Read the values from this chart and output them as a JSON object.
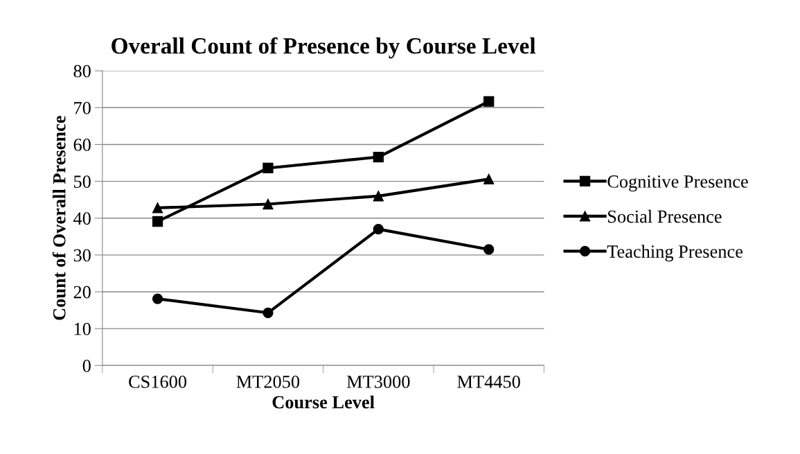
{
  "chart_data": {
    "type": "line",
    "title": "Overall Count of Presence by Course Level",
    "xlabel": "Course Level",
    "ylabel": "Count of Overall Presence",
    "categories": [
      "CS1600",
      "MT2050",
      "MT3000",
      "MT4450"
    ],
    "series": [
      {
        "name": "Cognitive Presence",
        "color": "#000000",
        "marker": "square",
        "values": [
          39.1,
          53.6,
          56.6,
          71.7
        ]
      },
      {
        "name": "Social Presence",
        "color": "#000000",
        "marker": "triangle",
        "values": [
          42.8,
          43.8,
          46.0,
          50.6
        ]
      },
      {
        "name": "Teaching Presence",
        "color": "#000000",
        "marker": "circle",
        "values": [
          18.1,
          14.3,
          37.0,
          31.5
        ]
      }
    ],
    "ylim": [
      0,
      80
    ],
    "yticks": [
      0,
      10,
      20,
      30,
      40,
      50,
      60,
      70,
      80
    ],
    "grid": "y",
    "legend": "right",
    "line_style": "solid"
  }
}
